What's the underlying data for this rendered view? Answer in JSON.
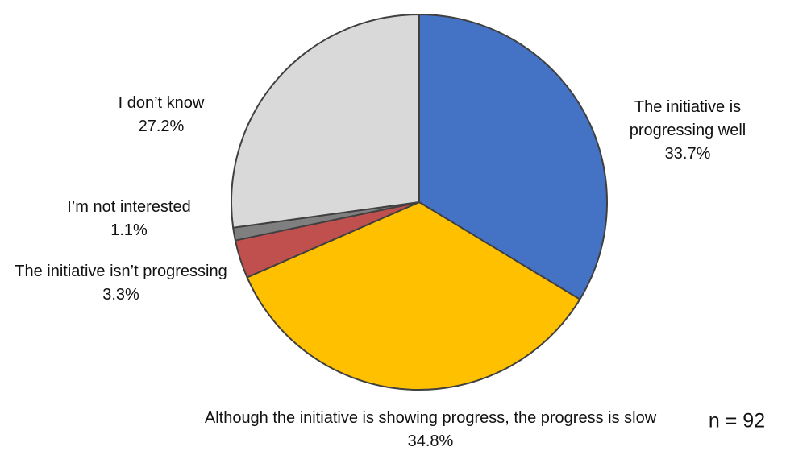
{
  "chart_data": {
    "type": "pie",
    "sample_size_label": "n = 92",
    "start_angle_deg": 0,
    "direction": "clockwise",
    "outline_color": "#404040",
    "background_color": "#FFFFFF",
    "slices": [
      {
        "label": "The initiative is progressing well",
        "pct_label": "33.7%",
        "value": 33.7,
        "color": "#4472C4"
      },
      {
        "label": "Although the initiative is showing progress, the progress is slow",
        "pct_label": "34.8%",
        "value": 34.8,
        "color": "#FFC000"
      },
      {
        "label": "The initiative isn’t progressing",
        "pct_label": "3.3%",
        "value": 3.3,
        "color": "#C0504D"
      },
      {
        "label": "I’m not interested",
        "pct_label": "1.1%",
        "value": 1.1,
        "color": "#7F7F7F"
      },
      {
        "label": "I don’t know",
        "pct_label": "27.2%",
        "value": 27.2,
        "color": "#D9D9D9"
      }
    ]
  }
}
